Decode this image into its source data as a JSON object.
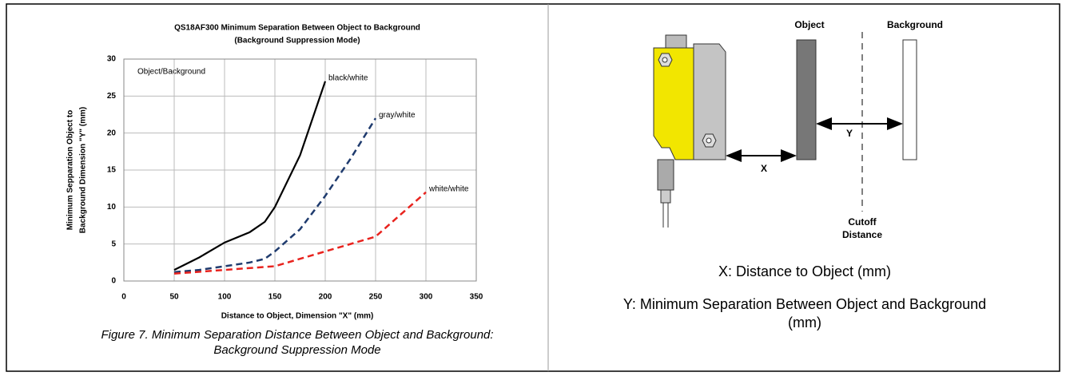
{
  "chart_data": {
    "type": "line",
    "title": "QS18AF300 Minimum Separation Between Object to Background",
    "subtitle": "(Background Suppression Mode)",
    "xlabel": "Distance to Object, Dimension \"X\" (mm)",
    "ylabel": [
      "Minimum Sepparation Object to",
      "Background Dimension \"Y\" (mm)"
    ],
    "annotation": "Object/Background",
    "xlim": [
      0,
      350
    ],
    "ylim": [
      0,
      30
    ],
    "xticks": [
      0,
      50,
      100,
      150,
      200,
      250,
      300,
      350
    ],
    "yticks": [
      0,
      5,
      10,
      15,
      20,
      25,
      30
    ],
    "grid": true,
    "series": [
      {
        "name": "black/white",
        "color": "#000000",
        "dashed": false,
        "x": [
          50,
          75,
          100,
          125,
          140,
          150,
          175,
          200
        ],
        "values": [
          1.5,
          3.2,
          5.2,
          6.6,
          8,
          10,
          17,
          27
        ]
      },
      {
        "name": "gray/white",
        "color": "#1f3b6e",
        "dashed": true,
        "x": [
          50,
          75,
          100,
          125,
          140,
          150,
          175,
          200,
          225,
          250
        ],
        "values": [
          1.2,
          1.5,
          2,
          2.5,
          3,
          4,
          7,
          11.5,
          16.5,
          22
        ]
      },
      {
        "name": "white/white",
        "color": "#e8231e",
        "dashed": true,
        "x": [
          50,
          100,
          150,
          200,
          250,
          275,
          300
        ],
        "values": [
          1,
          1.5,
          2,
          4,
          6,
          9,
          12
        ]
      }
    ]
  },
  "caption": [
    "Figure 7. Minimum Separation Distance Between Object and Background:",
    "Background Suppression Mode"
  ],
  "diagram": {
    "object": "Object",
    "background": "Background",
    "x": "X",
    "y": "Y",
    "cutoff": [
      "Cutoff",
      "Distance"
    ],
    "legend": [
      "X: Distance to Object (mm)",
      "Y: Minimum Separation Between Object and Background",
      "(mm)"
    ]
  }
}
